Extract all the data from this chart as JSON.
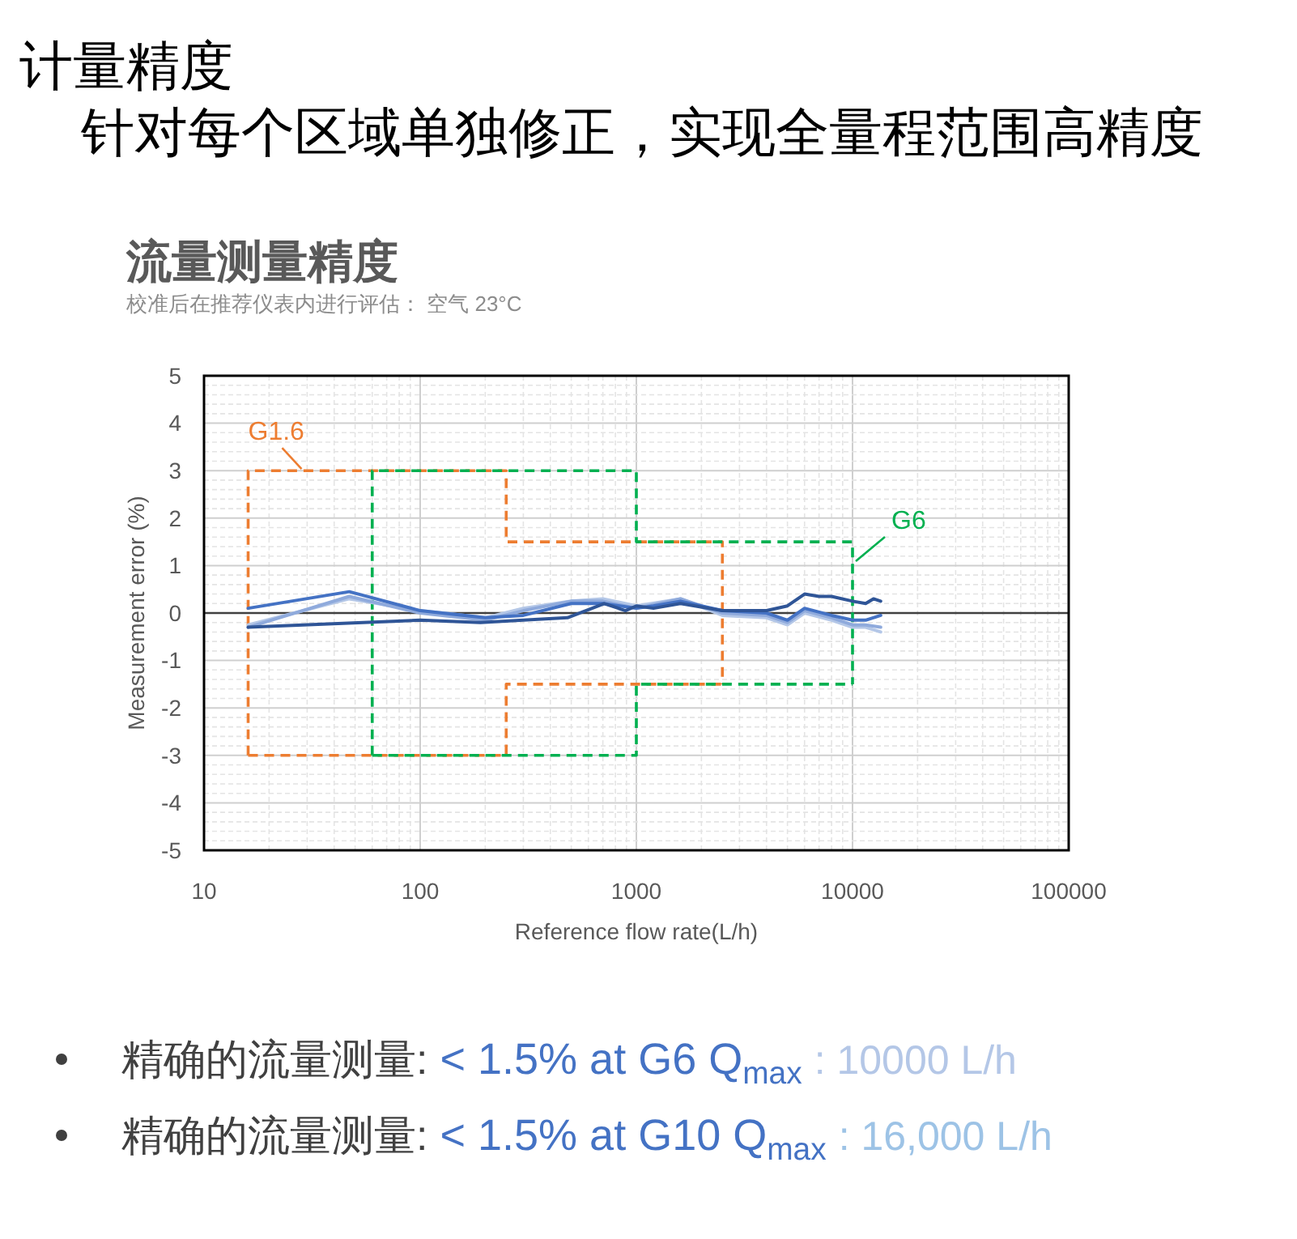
{
  "chart_data": {
    "type": "line",
    "title": "计量精度",
    "subtitle": "针对每个区域单独修正，实现全量程范围高精度",
    "xlabel": "Reference flow rate(L/h)",
    "ylabel": "Measurement error (%)",
    "annotations": [
      "流量测量精度",
      "校准后在推荐仪表内进行评估： 空气 23°C",
      "精确的流量测量: < 1.5% at G6 Q$_{max}$ : 10000 L/h",
      "精确的流量测量: < 1.5% at G10 Q$_{max}$ : 16,000 L/h"
    ],
    "log": "x",
    "xlim": [
      10,
      100000
    ],
    "xticks": [
      10,
      100,
      1000,
      10000,
      100000
    ],
    "ylim": [
      -5,
      5
    ],
    "yticks": [
      -5,
      -4,
      -3,
      -2,
      -1,
      0,
      1,
      2,
      3,
      4,
      5
    ],
    "grid": true,
    "ref_lines": [
      {
        "axis": "y",
        "value": 0,
        "color": "#404040"
      }
    ],
    "series": [
      {
        "name": "G1.6",
        "type": "line",
        "line_style": "dashed",
        "color": "#ed7d31",
        "x": [
          16,
          16,
          250,
          250,
          2500,
          2500
        ],
        "values": [
          -3,
          3,
          3,
          1.5,
          1.5,
          -1.5
        ]
      },
      {
        "type": "line",
        "line_style": "dashed",
        "color": "#ed7d31",
        "x": [
          16,
          250,
          250,
          2500
        ],
        "values": [
          -3,
          -3,
          -1.5,
          -1.5
        ]
      },
      {
        "name": "G6",
        "type": "line",
        "line_style": "dashed",
        "color": "#00b050",
        "x": [
          60,
          60,
          1000,
          1000,
          10000,
          10000
        ],
        "values": [
          -3,
          3,
          3,
          1.5,
          1.5,
          -1.5
        ]
      },
      {
        "type": "line",
        "line_style": "dashed",
        "color": "#00b050",
        "x": [
          60,
          1000,
          1000,
          10000
        ],
        "values": [
          -3,
          -3,
          -1.5,
          -1.5
        ]
      },
      {
        "color": "#b4c7e7",
        "x": [
          16,
          47,
          100,
          200,
          300,
          500,
          700,
          1000,
          1600,
          2500,
          4000,
          5000,
          6000,
          8000,
          10000,
          11500,
          13500
        ],
        "values": [
          -0.25,
          0.3,
          0.05,
          -0.1,
          0.1,
          0.25,
          0.3,
          0.15,
          0.3,
          -0.05,
          -0.1,
          -0.25,
          0,
          -0.15,
          -0.3,
          -0.3,
          -0.4
        ]
      },
      {
        "color": "#8faadc",
        "x": [
          16,
          47,
          100,
          200,
          300,
          500,
          700,
          1000,
          1600,
          2500,
          4000,
          5000,
          6000,
          8000,
          10000,
          11500,
          13500
        ],
        "values": [
          -0.3,
          0.35,
          0,
          -0.15,
          0.05,
          0.25,
          0.25,
          0.1,
          0.3,
          0,
          -0.05,
          -0.2,
          0.05,
          -0.1,
          -0.25,
          -0.25,
          -0.3
        ]
      },
      {
        "color": "#4472c4",
        "x": [
          16,
          47,
          100,
          200,
          300,
          500,
          700,
          1000,
          1200,
          1600,
          2500,
          4000,
          5000,
          6000,
          8000,
          10000,
          11500,
          13500
        ],
        "values": [
          0.1,
          0.45,
          0.05,
          -0.1,
          -0.05,
          0.2,
          0.2,
          0.1,
          0.15,
          0.25,
          0.05,
          0,
          -0.15,
          0.1,
          -0.05,
          -0.15,
          -0.15,
          -0.05
        ]
      },
      {
        "color": "#2f5597",
        "x": [
          16,
          100,
          190,
          300,
          480,
          710,
          890,
          1000,
          1200,
          1600,
          2500,
          4000,
          5000,
          6000,
          7000,
          8000,
          10000,
          11500,
          12500,
          13500
        ],
        "values": [
          -0.3,
          -0.15,
          -0.2,
          -0.15,
          -0.1,
          0.2,
          0.05,
          0.15,
          0.1,
          0.2,
          0.05,
          0.05,
          0.15,
          0.4,
          0.35,
          0.35,
          0.25,
          0.2,
          0.3,
          0.25
        ]
      }
    ]
  }
}
